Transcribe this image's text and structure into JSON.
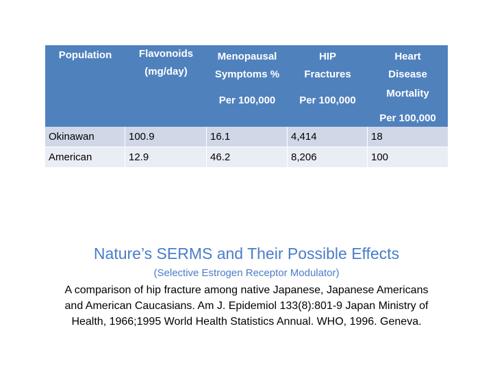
{
  "table": {
    "headers": [
      {
        "lines": [
          "Population"
        ]
      },
      {
        "lines": [
          "Flavonoids",
          "(mg/day)"
        ]
      },
      {
        "lines": [
          "Menopausal",
          "Symptoms %",
          "Per 100,000"
        ]
      },
      {
        "lines": [
          "HIP",
          "Fractures",
          "Per 100,000"
        ]
      },
      {
        "lines": [
          "Heart",
          "Disease",
          "Mortality",
          "Per 100,000"
        ]
      }
    ],
    "rows": [
      [
        "Okinawan",
        "100.9",
        "16.1",
        "4,414",
        "18"
      ],
      [
        "American",
        "12.9",
        "46.2",
        "8,206",
        "100"
      ]
    ]
  },
  "title": "Nature’s SERMS and Their Possible Effects",
  "subtitle": "(Selective Estrogen Receptor Modulator)",
  "citation": [
    "A comparison of hip fracture among native Japanese, Japanese Americans",
    "and American Caucasians. Am J. Epidemiol 133(8):801-9 Japan Ministry of",
    "Health, 1966;1995 World Health Statistics Annual. WHO, 1996. Geneva."
  ],
  "colors": {
    "header": "#4f81bd",
    "row1": "#d0d8e8",
    "row2": "#e9edf4",
    "title": "#4a7cc9"
  }
}
